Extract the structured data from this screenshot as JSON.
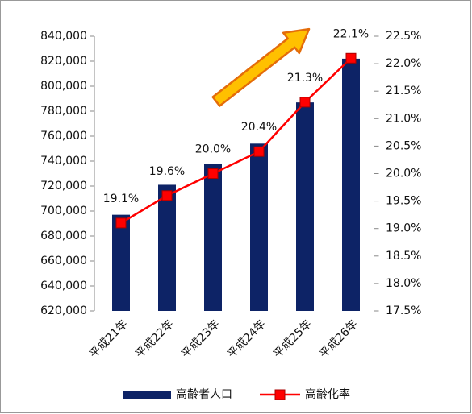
{
  "chart_data": {
    "type": "bar-line",
    "categories": [
      "平成21年",
      "平成22年",
      "平成23年",
      "平成24年",
      "平成25年",
      "平成26年"
    ],
    "series": [
      {
        "name": "高齢者人口",
        "type": "bar",
        "color": "#0d2366",
        "values": [
          697000,
          721000,
          738000,
          754000,
          787000,
          822000
        ]
      },
      {
        "name": "高齢化率",
        "type": "line",
        "axis": "y2",
        "color": "#ff0000",
        "values": [
          19.1,
          19.6,
          20.0,
          20.4,
          21.3,
          22.1
        ],
        "value_labels": [
          "19.1%",
          "19.6%",
          "20.0%",
          "20.4%",
          "21.3%",
          "22.1%"
        ]
      }
    ],
    "ylim": [
      620000,
      840000
    ],
    "yticks": [
      {
        "value": 620000,
        "label": "620,000"
      },
      {
        "value": 640000,
        "label": "640,000"
      },
      {
        "value": 660000,
        "label": "660,000"
      },
      {
        "value": 680000,
        "label": "680,000"
      },
      {
        "value": 700000,
        "label": "700,000"
      },
      {
        "value": 720000,
        "label": "720,000"
      },
      {
        "value": 740000,
        "label": "740,000"
      },
      {
        "value": 760000,
        "label": "760,000"
      },
      {
        "value": 780000,
        "label": "780,000"
      },
      {
        "value": 800000,
        "label": "800,000"
      },
      {
        "value": 820000,
        "label": "820,000"
      },
      {
        "value": 840000,
        "label": "840,000"
      }
    ],
    "y2lim": [
      17.5,
      22.5
    ],
    "y2ticks": [
      {
        "value": 17.5,
        "label": "17.5%"
      },
      {
        "value": 18.0,
        "label": "18.0%"
      },
      {
        "value": 18.5,
        "label": "18.5%"
      },
      {
        "value": 19.0,
        "label": "19.0%"
      },
      {
        "value": 19.5,
        "label": "19.5%"
      },
      {
        "value": 20.0,
        "label": "20.0%"
      },
      {
        "value": 20.5,
        "label": "20.5%"
      },
      {
        "value": 21.0,
        "label": "21.0%"
      },
      {
        "value": 21.5,
        "label": "21.5%"
      },
      {
        "value": 22.0,
        "label": "22.0%"
      },
      {
        "value": 22.5,
        "label": "22.5%"
      }
    ],
    "legend": "bottom"
  }
}
